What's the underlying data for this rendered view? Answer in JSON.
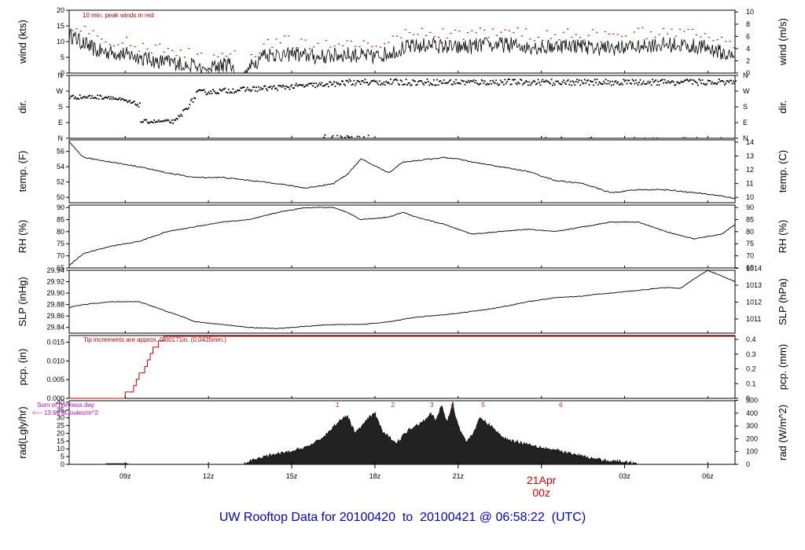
{
  "footer": {
    "prefix": "UW Rooftop Data for",
    "start": "20100420",
    "to": "to",
    "end": "20100421",
    "at": "@",
    "time": "06:58:22",
    "tz": "(UTC)"
  },
  "colors": {
    "axis": "#000000",
    "peak": "#cc0000",
    "pcp": "#cc0000",
    "hour_marks": "#cc00cc",
    "footer": "#0000cc",
    "date_label": "#cc0000",
    "rad_fill": "#222222"
  },
  "x_axis": {
    "ticks": [
      "09z",
      "12z",
      "15z",
      "18z",
      "21z",
      "00z",
      "03z",
      "06z"
    ],
    "date_label": "21Apr",
    "date_sub": "00z"
  },
  "chart_data": [
    {
      "type": "line",
      "name": "wind",
      "ylabel_left": "wind (kts)",
      "ylabel_right": "wind (m/s)",
      "annotation": "10 min. peak winds in red",
      "ylim": [
        0,
        20
      ],
      "yticks_left": [
        "0",
        "5",
        "10",
        "15",
        "20"
      ],
      "yticks_right": [
        "0",
        "2",
        "4",
        "6",
        "8",
        "10"
      ],
      "keypoints_hours": [
        7,
        8,
        9,
        10,
        11,
        11.5,
        12,
        12.2,
        12.8,
        13.3,
        14,
        15,
        16,
        17,
        18,
        19,
        20,
        21,
        22,
        23,
        24,
        25,
        26,
        27,
        28,
        29,
        30,
        30.98
      ],
      "keypoints_values": [
        12,
        7,
        6,
        4,
        3,
        2,
        1,
        2,
        3,
        0,
        6,
        6,
        5,
        6,
        5,
        8,
        9,
        8,
        9,
        9,
        8,
        9,
        8,
        8,
        9,
        9,
        8,
        5
      ]
    },
    {
      "type": "scatter",
      "name": "dir",
      "ylabel_left": "dir.",
      "ylabel_right": "dir.",
      "categories": [
        "N",
        "E",
        "S",
        "W",
        "N"
      ],
      "ylim": [
        0,
        360
      ]
    },
    {
      "type": "line",
      "name": "temp",
      "ylabel_left": "temp. (F)",
      "ylabel_right": "temp. (C)",
      "ylim": [
        49.3,
        57.5
      ],
      "yticks_left": [
        "50",
        "52",
        "54",
        "56"
      ],
      "yticks_right": [
        "10",
        "11",
        "12",
        "13",
        "14"
      ],
      "x_hours": [
        6.98,
        7.5,
        8.5,
        9.5,
        10.5,
        11.5,
        12.5,
        13.5,
        14.5,
        15.5,
        16.5,
        17,
        17.5,
        18.5,
        19,
        19.5,
        20.5,
        21,
        21.5,
        22.5,
        23.5,
        24.5,
        25.5,
        26.5,
        27.5,
        28.5,
        29.5,
        30.5,
        30.98
      ],
      "values": [
        57.2,
        55.2,
        54.6,
        54,
        53.2,
        52.6,
        52.6,
        52.2,
        51.8,
        51.2,
        51.8,
        53,
        55,
        53.2,
        54.6,
        54.8,
        55.2,
        55,
        54.6,
        54,
        53.4,
        52.2,
        51.8,
        50.6,
        51,
        51,
        50.6,
        50.2,
        49.8
      ]
    },
    {
      "type": "line",
      "name": "RH",
      "ylabel_left": "RH (%)",
      "ylabel_right": "RH (%)",
      "ylim": [
        65,
        91
      ],
      "yticks_left": [
        "65",
        "70",
        "75",
        "80",
        "85",
        "90"
      ],
      "yticks_right": [
        "65",
        "70",
        "75",
        "80",
        "85",
        "90"
      ],
      "x_hours": [
        6.98,
        7.5,
        8.5,
        9.5,
        10.5,
        11.5,
        12.5,
        13.5,
        14.5,
        15.5,
        16.5,
        17,
        17.5,
        18.5,
        19,
        19.5,
        20.5,
        21,
        21.5,
        22.5,
        23.5,
        24.5,
        25.5,
        26.5,
        27.5,
        28.5,
        29.5,
        30.5,
        30.98
      ],
      "values": [
        66,
        71,
        74,
        76,
        80,
        82,
        84,
        85,
        88,
        90,
        90,
        88,
        85,
        86,
        88,
        86,
        83,
        81,
        79,
        80,
        81,
        80,
        82,
        84,
        84,
        80,
        77,
        79,
        83
      ]
    },
    {
      "type": "line",
      "name": "SLP",
      "ylabel_left": "SLP (inHg)",
      "ylabel_right": "SLP (hPa)",
      "ylim": [
        29.83,
        29.94
      ],
      "yticks_left": [
        "29.84",
        "29.86",
        "29.88",
        "29.90",
        "29.92",
        "29.94"
      ],
      "yticks_right": [
        "1011",
        "1012",
        "1013",
        "1014"
      ],
      "x_hours": [
        6.98,
        7.5,
        8.5,
        9.5,
        10.5,
        11,
        11.5,
        12.5,
        13.5,
        14.5,
        15.5,
        16.5,
        17.5,
        18.5,
        19.5,
        20.5,
        21.5,
        22.5,
        23.5,
        24.5,
        25.5,
        26,
        26.5,
        27.5,
        28.5,
        29,
        29.5,
        30,
        30.98
      ],
      "values": [
        29.875,
        29.88,
        29.885,
        29.885,
        29.868,
        29.86,
        29.85,
        29.845,
        29.84,
        29.838,
        29.842,
        29.845,
        29.845,
        29.85,
        29.858,
        29.862,
        29.868,
        29.875,
        29.885,
        29.892,
        29.895,
        29.898,
        29.9,
        29.905,
        29.91,
        29.908,
        29.925,
        29.94,
        29.92
      ]
    },
    {
      "type": "line",
      "name": "pcp",
      "ylabel_left": "pcp. (in)",
      "ylabel_right": "pcp. (mm)",
      "annotation": "Tip increments are approx. 0.00171in. (0.0435mm.)",
      "ylim": [
        0,
        0.0168
      ],
      "yticks_left": [
        "0.000",
        "0.005",
        "0.010",
        "0.015"
      ],
      "yticks_right": [
        "0",
        "0.1",
        "0.2",
        "0.3",
        "0.4"
      ],
      "x_hours": [
        6.98,
        8.5,
        8.9,
        9.0,
        9.3,
        9.4,
        9.5,
        9.7,
        9.8,
        9.9,
        10.0,
        10.2,
        10.4,
        10.6
      ],
      "values": [
        0,
        0,
        0,
        0.0017,
        0.0034,
        0.0051,
        0.0068,
        0.0085,
        0.0103,
        0.012,
        0.0137,
        0.0154,
        0.0166,
        0.0166
      ]
    },
    {
      "type": "area",
      "name": "rad",
      "ylabel_left": "rad(Lgly/hr)",
      "ylabel_right": "rad (W/m^2)",
      "ylim": [
        0,
        41
      ],
      "yticks_left": [
        "0",
        "5",
        "10",
        "15",
        "20",
        "25",
        "30",
        "35",
        "40"
      ],
      "yticks_right": [
        "0",
        "100",
        "200",
        "300",
        "400",
        "500"
      ],
      "annotation_lines": [
        "Sum of previous day",
        "<--- 13.66 MJoules/m^2"
      ],
      "hour_marks": [
        "1",
        "2",
        "3",
        "4",
        "5",
        "6"
      ],
      "hour_marks_x_hours": [
        16.65,
        18.65,
        20.05,
        20.8,
        21.9,
        24.7
      ],
      "x_hours": [
        13.3,
        14,
        15,
        15.8,
        16.3,
        16.7,
        17.0,
        17.3,
        17.8,
        18.0,
        18.3,
        18.8,
        19.2,
        19.6,
        19.8,
        20.0,
        20.2,
        20.4,
        20.6,
        20.8,
        21.0,
        21.3,
        21.6,
        21.8,
        22.0,
        22.3,
        22.6,
        23,
        24,
        25,
        26,
        27,
        27.5
      ],
      "values": [
        0.5,
        5,
        8,
        13,
        20,
        28,
        31,
        20,
        30,
        33,
        20,
        14,
        22,
        26,
        29,
        33,
        28,
        38,
        27,
        39,
        25,
        14,
        22,
        30,
        27,
        23,
        17,
        15,
        11,
        7,
        3,
        1.5,
        0.5
      ]
    }
  ]
}
